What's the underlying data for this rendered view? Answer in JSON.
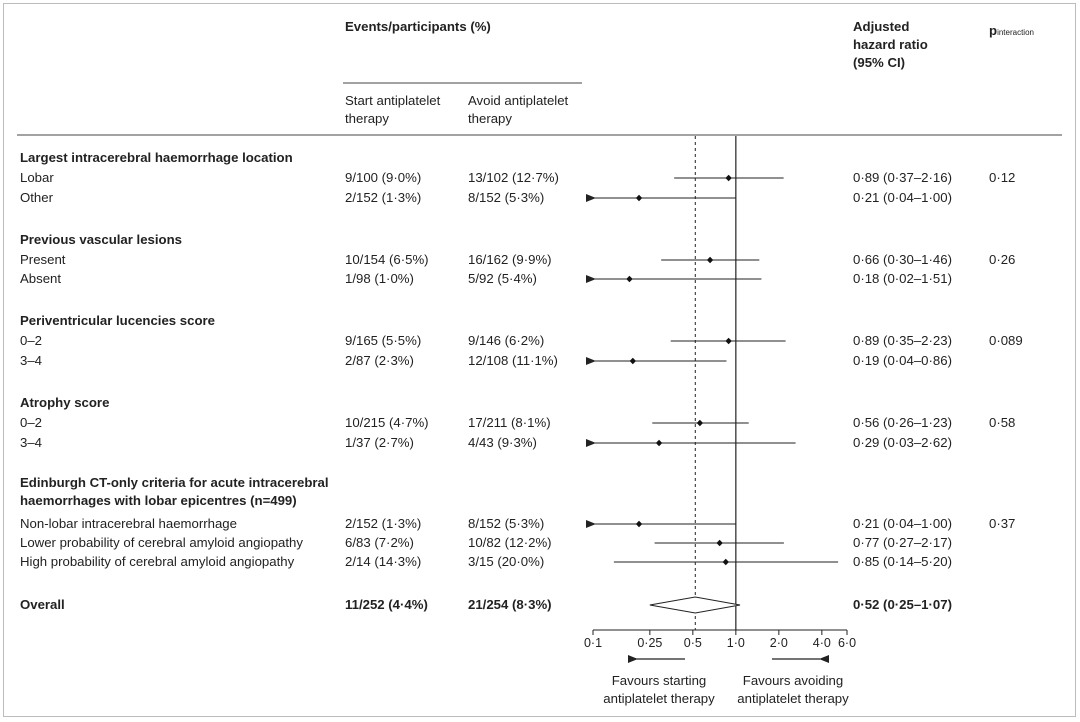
{
  "header": {
    "events_title": "Events/participants (%)",
    "col_start": "Start antiplatelet therapy",
    "col_avoid": "Avoid antiplatelet therapy",
    "hr_title_1": "Adjusted",
    "hr_title_2": "hazard ratio",
    "hr_title_3": "(95% CI)",
    "p_main": "p",
    "p_sub": "interaction"
  },
  "groups": [
    {
      "title": "Largest intracerebral haemorrhage location",
      "p": "0·12",
      "rows": [
        {
          "label": "Lobar",
          "start": "9/100 (9·0%)",
          "avoid": "13/102 (12·7%)",
          "hr_text": "0·89 (0·37–2·16)"
        },
        {
          "label": "Other",
          "start": "2/152 (1·3%)",
          "avoid": "8/152 (5·3%)",
          "hr_text": "0·21 (0·04–1·00)"
        }
      ]
    },
    {
      "title": "Previous vascular lesions",
      "p": "0·26",
      "rows": [
        {
          "label": "Present",
          "start": "10/154 (6·5%)",
          "avoid": "16/162 (9·9%)",
          "hr_text": "0·66 (0·30–1·46)"
        },
        {
          "label": "Absent",
          "start": "1/98 (1·0%)",
          "avoid": "5/92 (5·4%)",
          "hr_text": "0·18 (0·02–1·51)"
        }
      ]
    },
    {
      "title": "Periventricular lucencies score",
      "p": "0·089",
      "rows": [
        {
          "label": "0–2",
          "start": "9/165 (5·5%)",
          "avoid": "9/146 (6·2%)",
          "hr_text": "0·89 (0·35–2·23)"
        },
        {
          "label": "3–4",
          "start": "2/87 (2·3%)",
          "avoid": "12/108 (11·1%)",
          "hr_text": "0·19 (0·04–0·86)"
        }
      ]
    },
    {
      "title": "Atrophy score",
      "p": "0·58",
      "rows": [
        {
          "label": "0–2",
          "start": "10/215 (4·7%)",
          "avoid": "17/211 (8·1%)",
          "hr_text": "0·56 (0·26–1·23)"
        },
        {
          "label": "3–4",
          "start": "1/37 (2·7%)",
          "avoid": "4/43 (9·3%)",
          "hr_text": "0·29 (0·03–2·62)"
        }
      ]
    },
    {
      "title": "Edinburgh CT-only criteria for acute intracerebral haemorrhages with lobar epicentres (n=499)",
      "p": "0·37",
      "rows": [
        {
          "label": "Non-lobar intracerebral haemorrhage",
          "start": "2/152 (1·3%)",
          "avoid": "8/152 (5·3%)",
          "hr_text": "0·21 (0·04–1·00)"
        },
        {
          "label": "Lower probability of cerebral amyloid angiopathy",
          "start": "6/83 (7·2%)",
          "avoid": "10/82 (12·2%)",
          "hr_text": "0·77 (0·27–2·17)"
        },
        {
          "label": "High probability of cerebral amyloid angiopathy",
          "start": "2/14 (14·3%)",
          "avoid": "3/15 (20·0%)",
          "hr_text": "0·85 (0·14–5·20)"
        }
      ]
    }
  ],
  "overall": {
    "label": "Overall",
    "start": "11/252 (4·4%)",
    "avoid": "21/254 (8·3%)",
    "hr_text": "0·52 (0·25–1·07)"
  },
  "footer": {
    "favours_start": "Favours starting antiplatelet therapy",
    "favours_avoid": "Favours avoiding antiplatelet therapy"
  },
  "chart_data": {
    "type": "forest",
    "xscale": "log",
    "xlim": [
      0.1,
      6.0
    ],
    "ticks": [
      0.1,
      0.25,
      0.5,
      1.0,
      2.0,
      4.0,
      6.0
    ],
    "tick_labels": [
      "0·1",
      "0·25",
      "0·5",
      "1·0",
      "2·0",
      "4·0",
      "6·0"
    ],
    "reference_line": 1.0,
    "overall_reference_line": 0.52,
    "rows": [
      {
        "hr": 0.89,
        "lo": 0.37,
        "hi": 2.16
      },
      {
        "hr": 0.21,
        "lo": 0.04,
        "hi": 1.0
      },
      {
        "hr": 0.66,
        "lo": 0.3,
        "hi": 1.46
      },
      {
        "hr": 0.18,
        "lo": 0.02,
        "hi": 1.51
      },
      {
        "hr": 0.89,
        "lo": 0.35,
        "hi": 2.23
      },
      {
        "hr": 0.19,
        "lo": 0.04,
        "hi": 0.86
      },
      {
        "hr": 0.56,
        "lo": 0.26,
        "hi": 1.23
      },
      {
        "hr": 0.29,
        "lo": 0.03,
        "hi": 2.62
      },
      {
        "hr": 0.21,
        "lo": 0.04,
        "hi": 1.0
      },
      {
        "hr": 0.77,
        "lo": 0.27,
        "hi": 2.17
      },
      {
        "hr": 0.85,
        "lo": 0.14,
        "hi": 5.2
      }
    ],
    "overall": {
      "hr": 0.52,
      "lo": 0.25,
      "hi": 1.07
    }
  }
}
